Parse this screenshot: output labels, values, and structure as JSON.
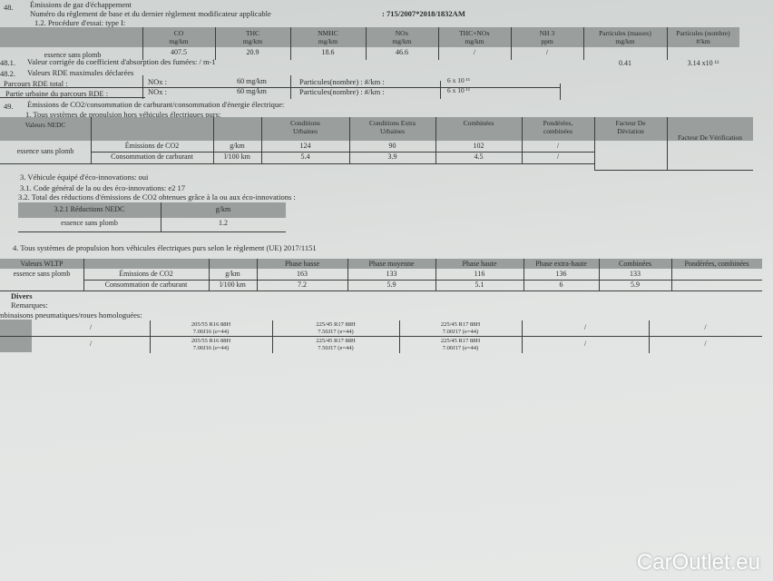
{
  "sec48": {
    "num": "48.",
    "title": "Émissions de gaz d'échappement",
    "reg_label": "Numéro du règlement de base et du dernier règlement modificateur applicable",
    "reg_value": ": 715/2007*2018/1832AM",
    "proc": "1.2. Procédure d'essai: type I:"
  },
  "t1": {
    "headers": [
      "CO\nmg/km",
      "THC\nmg/km",
      "NMHC\nmg/km",
      "NOx\nmg/km",
      "THC+NOx\nmg/km",
      "NH 3\nppm",
      "Particules (masses)\nmg/km",
      "Particules (nombre)\n#/km"
    ],
    "row_label": "essence sans plomb",
    "values": [
      "407.5",
      "20.9",
      "18.6",
      "46.6",
      "/",
      "/",
      "0.41",
      "3.14 x10 ¹¹"
    ]
  },
  "s481": {
    "num": "48.1.",
    "text": "Valeur corrigée du coefficient d'absorption des fumées: / m-1"
  },
  "s482": {
    "num": "48.2.",
    "text": "Valeurs RDE maximales déclarées",
    "rows": [
      {
        "label": "Parcours RDE total :",
        "nox": "NOx :",
        "nox_val": "60 mg/km",
        "part": "Particules(nombre) : #/km :",
        "part_val": "6 x 10 ¹¹"
      },
      {
        "label": "Partie urbaine du parcours RDE     :",
        "nox": "NOx :",
        "nox_val": "60 mg/km",
        "part": "Particules(nombre) : #/km :",
        "part_val": "6 x 10 ¹¹"
      }
    ]
  },
  "sec49": {
    "num": "49.",
    "title": "Émissions de CO2/consommation de carburant/consommation d'énergie électrique:",
    "sub1": "1. Tous systèmes de propulsion hors véhicules électriques purs:"
  },
  "nedc": {
    "headers": [
      "Valeurs NEDC",
      "",
      "",
      "Conditions\nUrbaines",
      "Conditions Extra\nUrbaines",
      "Combinées",
      "Pondérées,\ncombinées",
      "Facteur De\nDéviation",
      "Facteur De Vérification"
    ],
    "row_label": "essence sans plomb",
    "rows": [
      [
        "Émissions de CO2",
        "g/km",
        "124",
        "90",
        "102",
        "/"
      ],
      [
        "Consommation de carburant",
        "l/100 km",
        "5.4",
        "3.9",
        "4.5",
        "/"
      ]
    ]
  },
  "eco": {
    "l3": "3. Véhicule équipé d'éco-innovations: oui",
    "l31": "3.1. Code général de la ou des éco-innovations: e2 17",
    "l32": "3.2. Total des réductions d'émissions de CO2 obtenues grâce à la ou aux éco-innovations :",
    "headers": [
      "3.2.1 Réductions NEDC",
      "g/km"
    ],
    "row": [
      "essence sans plomb",
      "1.2"
    ]
  },
  "wltp": {
    "title": "4. Tous systèmes de propulsion hors véhicules électriques purs selon le règlement (UE) 2017/1151",
    "headers": [
      "Valeurs WLTP",
      "",
      "",
      "Phase basse",
      "Phase moyenne",
      "Phase haute",
      "Phase extra-haute",
      "Combinées",
      "Pondérées, combinées"
    ],
    "row_label": "essence sans plomb",
    "rows": [
      [
        "Émissions de CO2",
        "g/km",
        "163",
        "133",
        "116",
        "136",
        "133",
        ""
      ],
      [
        "Consommation de carburant",
        "l/100 km",
        "7.2",
        "5.9",
        "5.1",
        "6",
        "5.9",
        ""
      ]
    ]
  },
  "divers": {
    "title": "Divers",
    "remarques": "Remarques:",
    "comb": "Combinaisons pneumatiques/roues homologuées:"
  },
  "tires": {
    "rows": [
      [
        "/",
        "205/55 R16 88H",
        "7.00J16 (e=44)",
        "225/45 R17 88H",
        "7.50J17 (e=44)",
        "225/45 R17 88H",
        "7.00J17 (e=44)",
        "/",
        "/"
      ],
      [
        "/",
        "205/55 R16 88H",
        "7.00J16 (e=44)",
        "225/45 R17 88H",
        "7.50J17 (e=44)",
        "225/45 R17 88H",
        "7.00J17 (e=44)",
        "/",
        "/"
      ]
    ]
  },
  "watermark": "CarOutlet.eu"
}
